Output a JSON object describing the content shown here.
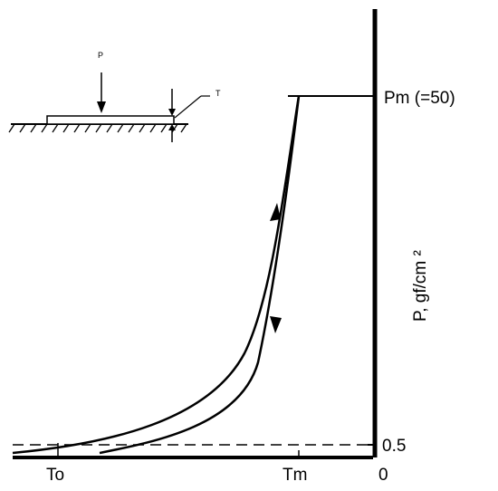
{
  "chart_data": {
    "type": "line",
    "title": "",
    "ylabel": "P, gf/cm ²",
    "xlabel": "",
    "x_ticks": [
      {
        "label": "To",
        "value": 0.85
      },
      {
        "label": "Tm",
        "value": 0.21
      },
      {
        "label": "0",
        "value": 0.0
      }
    ],
    "y_ticks": [
      {
        "label": "0.5",
        "value": 0.5
      },
      {
        "label": "Pm (=50)",
        "value": 50
      }
    ],
    "ylim": [
      0,
      50
    ],
    "series": [
      {
        "points": [
          [
            1.0,
            0
          ],
          [
            0.85,
            0.5
          ],
          [
            0.72,
            3.0
          ],
          [
            0.58,
            8.0
          ],
          [
            0.45,
            15.5
          ],
          [
            0.33,
            26.0
          ],
          [
            0.25,
            38.0
          ],
          [
            0.21,
            50.0
          ]
        ]
      },
      {
        "points": [
          [
            0.21,
            50.0
          ],
          [
            0.23,
            36.0
          ],
          [
            0.28,
            22.0
          ],
          [
            0.36,
            11.0
          ],
          [
            0.47,
            4.0
          ],
          [
            0.6,
            0.5
          ],
          [
            0.75,
            0
          ],
          [
            1.0,
            0
          ]
        ]
      }
    ],
    "reference_line": {
      "y": 0.5,
      "style": "dashed"
    },
    "direction_arrows": [
      "up on loading curve",
      "down on unloading curve"
    ],
    "inset": {
      "labels": {
        "load": "P",
        "thickness": "T"
      }
    }
  }
}
